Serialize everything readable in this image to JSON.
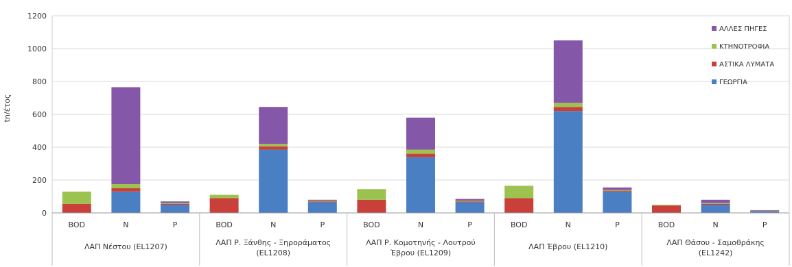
{
  "chart_data": {
    "type": "bar",
    "stacked": true,
    "title": "",
    "xlabel": "",
    "ylabel": "tn/έτος",
    "ylim": [
      0,
      1200
    ],
    "yticks": [
      0,
      200,
      400,
      600,
      800,
      1000,
      1200
    ],
    "grid": true,
    "legend_position": "top-right",
    "groups": [
      {
        "label": "ΛΑΠ Νέστου (EL1207)",
        "categories": [
          "BOD",
          "N",
          "P"
        ]
      },
      {
        "label": "ΛΑΠ Ρ. Ξάνθης - Ξηροράματος (EL1208)",
        "categories": [
          "BOD",
          "N",
          "P"
        ]
      },
      {
        "label": "ΛΑΠ Ρ. Κομοτηνής - Λουτρού Έβρου (EL1209)",
        "categories": [
          "BOD",
          "N",
          "P"
        ]
      },
      {
        "label": "ΛΑΠ Έβρου (EL1210)",
        "categories": [
          "BOD",
          "N",
          "P"
        ]
      },
      {
        "label": "ΛΑΠ Θάσου - Σαμοθράκης (EL1242)",
        "categories": [
          "BOD",
          "N",
          "P"
        ]
      }
    ],
    "series": [
      {
        "name": "ΓΕΩΡΓΙΑ",
        "color": "#4a7fc4",
        "values": [
          0,
          130,
          50,
          0,
          385,
          65,
          0,
          340,
          65,
          0,
          620,
          130,
          0,
          50,
          10
        ]
      },
      {
        "name": "ΑΣΤΙΚΑ ΛΥΜΑΤΑ",
        "color": "#c9403a",
        "values": [
          55,
          20,
          5,
          90,
          20,
          5,
          80,
          20,
          5,
          90,
          25,
          5,
          45,
          5,
          2
        ]
      },
      {
        "name": "ΚΤΗΝΟΤΡΟΦΙΑ",
        "color": "#9cc24f",
        "values": [
          75,
          25,
          5,
          20,
          15,
          5,
          65,
          25,
          5,
          75,
          25,
          5,
          5,
          5,
          2
        ]
      },
      {
        "name": "ΑΛΛΕΣ ΠΗΓΕΣ",
        "color": "#8557a8",
        "values": [
          0,
          590,
          10,
          0,
          225,
          5,
          0,
          195,
          10,
          0,
          380,
          15,
          0,
          20,
          3
        ]
      }
    ],
    "legend_order": [
      "ΑΛΛΕΣ ΠΗΓΕΣ",
      "ΚΤΗΝΟΤΡΟΦΙΑ",
      "ΑΣΤΙΚΑ ΛΥΜΑΤΑ",
      "ΓΕΩΡΓΙΑ"
    ]
  }
}
